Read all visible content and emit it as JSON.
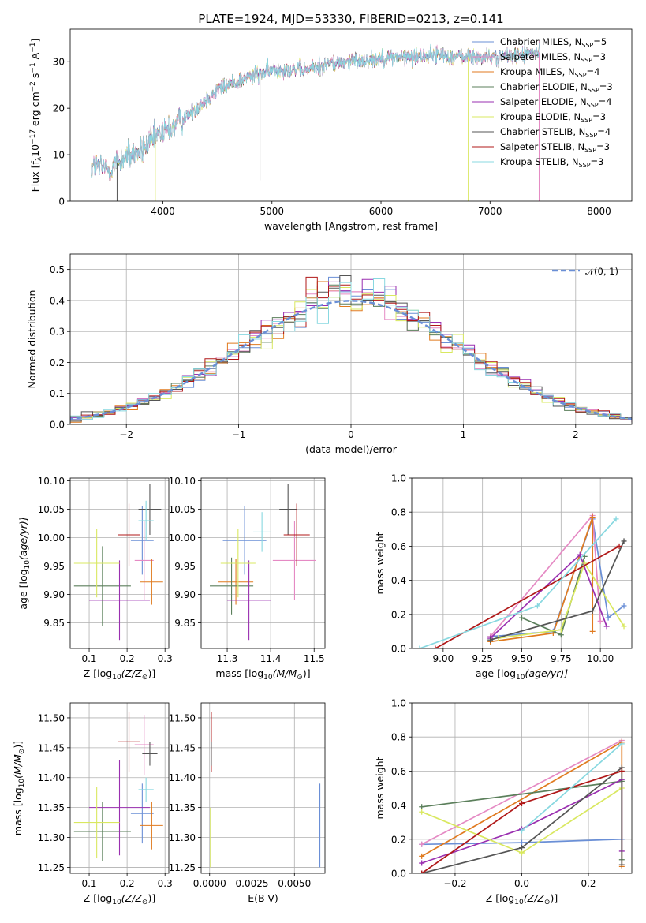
{
  "colors": {
    "Chabrier MILES": "#6a8fd6",
    "Salpeter MILES": "#e58ac4",
    "Kroupa MILES": "#e07a1f",
    "Chabrier ELODIE": "#5b7f5b",
    "Salpeter ELODIE": "#9a2fb0",
    "Kroupa ELODIE": "#d9e860",
    "Chabrier STELIB": "#555555",
    "Salpeter STELIB": "#b01818",
    "Kroupa STELIB": "#88d8e0"
  },
  "chart_data": [
    {
      "id": "spectrum",
      "type": "line",
      "title": "PLATE=1924, MJD=53330, FIBERID=0213, z=0.141",
      "xlabel": "wavelength [Angstrom, rest frame]",
      "ylabel_parts": [
        "Flux [f",
        "λ",
        "10",
        "−17",
        " erg cm",
        "−2",
        " s",
        "−1",
        " A",
        "−1",
        "]"
      ],
      "xlim": [
        3150,
        8300
      ],
      "ylim": [
        0,
        37
      ],
      "xticks": [
        4000,
        5000,
        6000,
        7000,
        8000
      ],
      "yticks": [
        0,
        10,
        20,
        30
      ],
      "grid": false,
      "legend_position": "upper right",
      "legend": [
        {
          "model": "Chabrier MILES",
          "label": "Chabrier MILES, N",
          "sub": "SSP",
          "suffix": "=5"
        },
        {
          "model": "Salpeter MILES",
          "label": "Salpeter MILES, N",
          "sub": "SSP",
          "suffix": "=3"
        },
        {
          "model": "Kroupa MILES",
          "label": "Kroupa MILES, N",
          "sub": "SSP",
          "suffix": "=4"
        },
        {
          "model": "Chabrier ELODIE",
          "label": "Chabrier ELODIE, N",
          "sub": "SSP",
          "suffix": "=3"
        },
        {
          "model": "Salpeter ELODIE",
          "label": "Salpeter ELODIE, N",
          "sub": "SSP",
          "suffix": "=4"
        },
        {
          "model": "Kroupa ELODIE",
          "label": "Kroupa ELODIE, N",
          "sub": "SSP",
          "suffix": "=3"
        },
        {
          "model": "Chabrier STELIB",
          "label": "Chabrier STELIB, N",
          "sub": "SSP",
          "suffix": "=4"
        },
        {
          "model": "Salpeter STELIB",
          "label": "Salpeter STELIB, N",
          "sub": "SSP",
          "suffix": "=3"
        },
        {
          "model": "Kroupa STELIB",
          "label": "Kroupa STELIB, N",
          "sub": "SSP",
          "suffix": "=3"
        }
      ],
      "continuum": [
        [
          3350,
          7.5
        ],
        [
          3500,
          7
        ],
        [
          3650,
          9.5
        ],
        [
          3800,
          10.5
        ],
        [
          3950,
          14
        ],
        [
          4100,
          16
        ],
        [
          4300,
          20
        ],
        [
          4500,
          24
        ],
        [
          4700,
          26
        ],
        [
          4900,
          27.5
        ],
        [
          5100,
          28.5
        ],
        [
          5300,
          28
        ],
        [
          5500,
          29.5
        ],
        [
          5700,
          30
        ],
        [
          5900,
          30.5
        ],
        [
          6100,
          31
        ],
        [
          6300,
          31
        ],
        [
          6500,
          31.5
        ],
        [
          6700,
          31
        ],
        [
          6900,
          31
        ],
        [
          7100,
          31
        ],
        [
          7300,
          31.5
        ],
        [
          7450,
          32
        ]
      ],
      "data_range": [
        3350,
        7450
      ],
      "spikes": [
        {
          "x": 4890,
          "y": 4.5
        },
        {
          "x": 3580,
          "y": 0
        },
        {
          "x": 3930,
          "y": 0,
          "model": "Kroupa ELODIE"
        },
        {
          "x": 6800,
          "y": 0,
          "model": "Kroupa ELODIE"
        },
        {
          "x": 7450,
          "y": 0,
          "model": "Salpeter MILES"
        }
      ]
    },
    {
      "id": "residuals",
      "type": "histogram",
      "xlabel": "(data-model)/error",
      "ylabel": "Normed distribution",
      "xlim": [
        -2.5,
        2.5
      ],
      "ylim": [
        0,
        0.55
      ],
      "xticks": [
        -2,
        -1,
        0,
        1,
        2
      ],
      "yticks": [
        0.0,
        0.1,
        0.2,
        0.3,
        0.4,
        0.5
      ],
      "grid": true,
      "legend_position": "upper right",
      "legend": [
        {
          "label": "𝒩(0, 1)",
          "color": "#6a8fd6",
          "style": "dashed"
        }
      ],
      "bin_width": 0.1
    },
    {
      "id": "age-vs-Z",
      "type": "errorbar",
      "xlabel_main": "Z [log",
      "xlabel_sub": "10",
      "xlabel_tail": "(Z/Z",
      "xlabel_sym": "⊙",
      "xlabel_end": ")]",
      "ylabel_main": "age  [log",
      "ylabel_sub": "10",
      "ylabel_tail": "(age/yr)]",
      "xlim": [
        0.05,
        0.31
      ],
      "ylim": [
        9.805,
        10.105
      ],
      "xticks": [
        0.1,
        0.2,
        0.3
      ],
      "yticks": [
        9.85,
        9.9,
        9.95,
        10.0,
        10.05,
        10.1
      ],
      "grid": true,
      "points": [
        {
          "model": "Chabrier MILES",
          "x": 0.24,
          "xerr": 0.03,
          "y": 9.995,
          "yerr": 0.06
        },
        {
          "model": "Salpeter MILES",
          "x": 0.245,
          "xerr": 0.025,
          "y": 9.96,
          "yerr": 0.07
        },
        {
          "model": "Kroupa MILES",
          "x": 0.265,
          "xerr": 0.03,
          "y": 9.922,
          "yerr": 0.04
        },
        {
          "model": "Chabrier ELODIE",
          "x": 0.135,
          "xerr": 0.075,
          "y": 9.915,
          "yerr": 0.07
        },
        {
          "model": "Salpeter ELODIE",
          "x": 0.18,
          "xerr": 0.08,
          "y": 9.89,
          "yerr": 0.07
        },
        {
          "model": "Kroupa ELODIE",
          "x": 0.12,
          "xerr": 0.06,
          "y": 9.955,
          "yerr": 0.06
        },
        {
          "model": "Chabrier STELIB",
          "x": 0.26,
          "xerr": 0.03,
          "y": 10.05,
          "yerr": 0.045
        },
        {
          "model": "Salpeter STELIB",
          "x": 0.205,
          "xerr": 0.03,
          "y": 10.005,
          "yerr": 0.055
        },
        {
          "model": "Kroupa STELIB",
          "x": 0.25,
          "xerr": 0.02,
          "y": 10.03,
          "yerr": 0.035
        }
      ]
    },
    {
      "id": "age-vs-mass",
      "type": "errorbar",
      "xlabel_main": "mass [log",
      "xlabel_sub": "10",
      "xlabel_tail": "(M/M",
      "xlabel_sym": "⊙",
      "xlabel_end": ")]",
      "xlim": [
        11.24,
        11.525
      ],
      "ylim": [
        9.805,
        10.105
      ],
      "xticks": [
        11.3,
        11.4,
        11.5
      ],
      "yticks": [
        9.85,
        9.9,
        9.95,
        10.0,
        10.05,
        10.1
      ],
      "grid": true,
      "points": [
        {
          "model": "Chabrier MILES",
          "x": 11.34,
          "xerr": 0.05,
          "y": 9.995,
          "yerr": 0.06
        },
        {
          "model": "Salpeter MILES",
          "x": 11.455,
          "xerr": 0.05,
          "y": 9.96,
          "yerr": 0.07
        },
        {
          "model": "Kroupa MILES",
          "x": 11.32,
          "xerr": 0.04,
          "y": 9.922,
          "yerr": 0.04
        },
        {
          "model": "Chabrier ELODIE",
          "x": 11.31,
          "xerr": 0.05,
          "y": 9.915,
          "yerr": 0.05
        },
        {
          "model": "Salpeter ELODIE",
          "x": 11.35,
          "xerr": 0.05,
          "y": 9.89,
          "yerr": 0.07
        },
        {
          "model": "Kroupa ELODIE",
          "x": 11.325,
          "xerr": 0.04,
          "y": 9.955,
          "yerr": 0.06
        },
        {
          "model": "Chabrier STELIB",
          "x": 11.44,
          "xerr": 0.02,
          "y": 10.05,
          "yerr": 0.045
        },
        {
          "model": "Salpeter STELIB",
          "x": 11.46,
          "xerr": 0.03,
          "y": 10.005,
          "yerr": 0.055
        },
        {
          "model": "Kroupa STELIB",
          "x": 11.38,
          "xerr": 0.02,
          "y": 10.01,
          "yerr": 0.035
        }
      ]
    },
    {
      "id": "weight-vs-age",
      "type": "line",
      "xlabel_main": "age  [log",
      "xlabel_sub": "10",
      "xlabel_tail": "(age/yr)]",
      "ylabel": "mass weight",
      "xlim": [
        8.8,
        10.2
      ],
      "ylim": [
        0,
        1
      ],
      "xticks": [
        9.0,
        9.25,
        9.5,
        9.75,
        10.0
      ],
      "xtick_labels": [
        "9.00",
        "9.25",
        "9.50",
        "9.75",
        "10.00"
      ],
      "yticks": [
        0.0,
        0.2,
        0.4,
        0.6,
        0.8,
        1.0
      ],
      "grid": true,
      "series": [
        {
          "model": "Chabrier MILES",
          "x": [
            9.3,
            9.7,
            9.95,
            10.05,
            10.15
          ],
          "y": [
            0.07,
            0.1,
            0.76,
            0.18,
            0.25
          ]
        },
        {
          "model": "Salpeter MILES",
          "x": [
            9.3,
            9.95,
            10.0
          ],
          "y": [
            0.07,
            0.78,
            0.16
          ]
        },
        {
          "model": "Kroupa MILES",
          "x": [
            9.3,
            9.7,
            9.95,
            9.95
          ],
          "y": [
            0.04,
            0.09,
            0.77,
            0.1
          ]
        },
        {
          "model": "Chabrier ELODIE",
          "x": [
            9.5,
            9.75,
            9.9
          ],
          "y": [
            0.18,
            0.08,
            0.54
          ]
        },
        {
          "model": "Salpeter ELODIE",
          "x": [
            9.3,
            9.87,
            10.04
          ],
          "y": [
            0.06,
            0.55,
            0.13
          ]
        },
        {
          "model": "Kroupa ELODIE",
          "x": [
            9.35,
            9.75,
            9.9,
            10.15
          ],
          "y": [
            0.06,
            0.11,
            0.5,
            0.13
          ]
        },
        {
          "model": "Chabrier STELIB",
          "x": [
            9.3,
            9.95,
            10.15
          ],
          "y": [
            0.05,
            0.22,
            0.63
          ]
        },
        {
          "model": "Salpeter STELIB",
          "x": [
            8.95,
            10.12
          ],
          "y": [
            0.0,
            0.6
          ]
        },
        {
          "model": "Kroupa STELIB",
          "x": [
            8.85,
            9.6,
            10.1
          ],
          "y": [
            0.0,
            0.25,
            0.76
          ]
        }
      ]
    },
    {
      "id": "mass-vs-Z",
      "type": "errorbar",
      "xlabel_main": "Z [log",
      "xlabel_sub": "10",
      "xlabel_tail": "(Z/Z",
      "xlabel_sym": "⊙",
      "xlabel_end": ")]",
      "ylabel_main": "mass [log",
      "ylabel_sub": "10",
      "ylabel_tail": "(M/M",
      "ylabel_sym": "⊙",
      "ylabel_end": ")]",
      "xlim": [
        0.05,
        0.31
      ],
      "ylim": [
        11.24,
        11.525
      ],
      "xticks": [
        0.1,
        0.2,
        0.3
      ],
      "yticks": [
        11.25,
        11.3,
        11.35,
        11.4,
        11.45,
        11.5
      ],
      "grid": true,
      "points": [
        {
          "model": "Chabrier MILES",
          "x": 0.24,
          "xerr": 0.03,
          "y": 11.34,
          "yerr": 0.05
        },
        {
          "model": "Salpeter MILES",
          "x": 0.245,
          "xerr": 0.025,
          "y": 11.455,
          "yerr": 0.05
        },
        {
          "model": "Kroupa MILES",
          "x": 0.265,
          "xerr": 0.03,
          "y": 11.32,
          "yerr": 0.04
        },
        {
          "model": "Chabrier ELODIE",
          "x": 0.135,
          "xerr": 0.075,
          "y": 11.31,
          "yerr": 0.05
        },
        {
          "model": "Salpeter ELODIE",
          "x": 0.18,
          "xerr": 0.08,
          "y": 11.35,
          "yerr": 0.08
        },
        {
          "model": "Kroupa ELODIE",
          "x": 0.12,
          "xerr": 0.06,
          "y": 11.325,
          "yerr": 0.06
        },
        {
          "model": "Chabrier STELIB",
          "x": 0.26,
          "xerr": 0.02,
          "y": 11.44,
          "yerr": 0.02
        },
        {
          "model": "Salpeter STELIB",
          "x": 0.205,
          "xerr": 0.03,
          "y": 11.46,
          "yerr": 0.05
        },
        {
          "model": "Kroupa STELIB",
          "x": 0.25,
          "xerr": 0.02,
          "y": 11.38,
          "yerr": 0.02
        }
      ]
    },
    {
      "id": "mass-vs-ebv",
      "type": "errorbar",
      "xlabel": "E(B-V)",
      "xlim": [
        -0.0005,
        0.0068
      ],
      "ylim": [
        11.24,
        11.525
      ],
      "xticks": [
        0.0,
        0.0025,
        0.005
      ],
      "xtick_labels": [
        "0.0000",
        "0.0025",
        "0.0050"
      ],
      "yticks": [
        11.25,
        11.3,
        11.35,
        11.4,
        11.45,
        11.5
      ],
      "grid": true,
      "points": [
        {
          "model": "Chabrier MILES",
          "x": 0.0065,
          "xerr": 0,
          "y": 11.32,
          "yerr": 0.07
        },
        {
          "model": "Salpeter STELIB",
          "x": 0.0001,
          "xerr": 0,
          "y": 11.46,
          "yerr": 0.05
        },
        {
          "model": "Chabrier STELIB",
          "x": 0.0001,
          "xerr": 0,
          "y": 11.44,
          "yerr": 0.02
        },
        {
          "model": "Kroupa ELODIE",
          "x": 5e-05,
          "xerr": 0,
          "y": 11.3,
          "yerr": 0.05
        }
      ]
    },
    {
      "id": "weight-vs-Z",
      "type": "line",
      "xlabel_main": "Z [log",
      "xlabel_sub": "10",
      "xlabel_tail": "(Z/Z",
      "xlabel_sym": "⊙",
      "xlabel_end": ")]",
      "ylabel": "mass weight",
      "xlim": [
        -0.33,
        0.33
      ],
      "ylim": [
        0,
        1
      ],
      "xticks": [
        -0.2,
        0.0,
        0.2
      ],
      "xtick_labels": [
        "−0.2",
        "0.0",
        "0.2"
      ],
      "yticks": [
        0.0,
        0.2,
        0.4,
        0.6,
        0.8,
        1.0
      ],
      "grid": true,
      "series": [
        {
          "model": "Chabrier MILES",
          "x": [
            -0.3,
            0.0,
            0.3
          ],
          "y": [
            0.17,
            0.18,
            0.2
          ]
        },
        {
          "model": "Salpeter MILES",
          "x": [
            -0.3,
            0.3
          ],
          "y": [
            0.17,
            0.78
          ]
        },
        {
          "model": "Kroupa MILES",
          "x": [
            -0.3,
            0.3,
            0.3
          ],
          "y": [
            0.1,
            0.77,
            0.04
          ]
        },
        {
          "model": "Chabrier ELODIE",
          "x": [
            -0.3,
            0.3,
            0.3
          ],
          "y": [
            0.39,
            0.54,
            0.08
          ]
        },
        {
          "model": "Salpeter ELODIE",
          "x": [
            -0.3,
            0.0,
            0.3,
            0.3
          ],
          "y": [
            0.06,
            0.26,
            0.55,
            0.13
          ]
        },
        {
          "model": "Kroupa ELODIE",
          "x": [
            -0.3,
            0.0,
            0.3
          ],
          "y": [
            0.36,
            0.12,
            0.5
          ]
        },
        {
          "model": "Chabrier STELIB",
          "x": [
            -0.3,
            0.0,
            0.3,
            0.3
          ],
          "y": [
            0.0,
            0.15,
            0.62,
            0.05
          ]
        },
        {
          "model": "Salpeter STELIB",
          "x": [
            -0.3,
            0.0,
            0.3
          ],
          "y": [
            0.0,
            0.41,
            0.6
          ]
        },
        {
          "model": "Kroupa STELIB",
          "x": [
            0.0,
            0.3
          ],
          "y": [
            0.25,
            0.76
          ]
        }
      ]
    }
  ]
}
